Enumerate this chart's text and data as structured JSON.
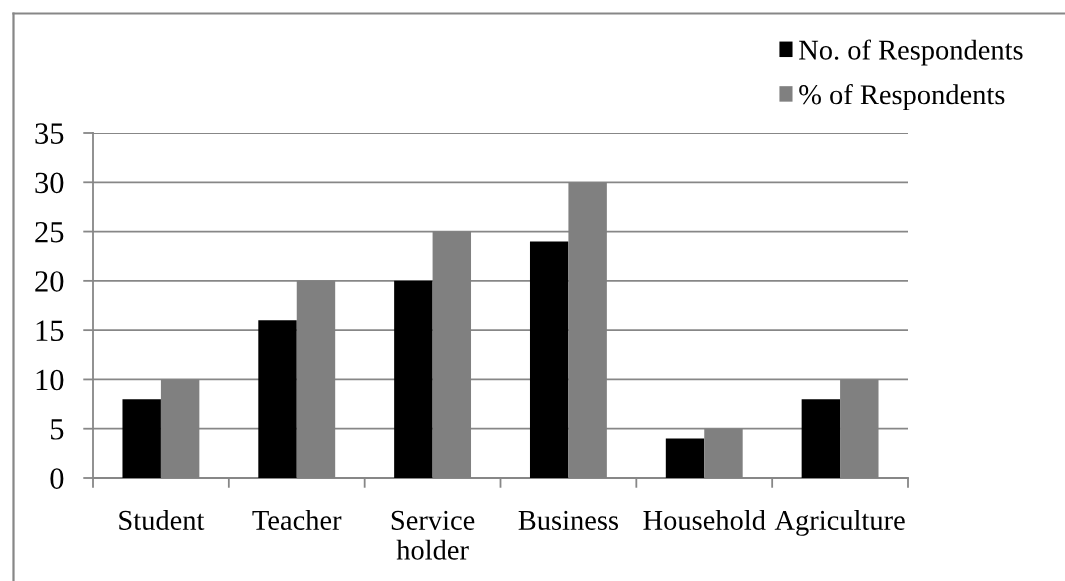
{
  "chart_data": {
    "type": "bar",
    "categories": [
      "Student",
      "Teacher",
      "Service\nholder",
      "Business",
      "Household",
      "Agriculture"
    ],
    "series": [
      {
        "name": "No. of Respondents",
        "color": "#000000",
        "values": [
          8,
          16,
          20,
          24,
          4,
          8
        ]
      },
      {
        "name": "% of Respondents",
        "color": "#808080",
        "values": [
          10,
          20,
          25,
          30,
          5,
          10
        ]
      }
    ],
    "ylim": [
      0,
      35
    ],
    "yticks": [
      0,
      5,
      10,
      15,
      20,
      25,
      30,
      35
    ],
    "grid": "y",
    "legend": "top right"
  }
}
